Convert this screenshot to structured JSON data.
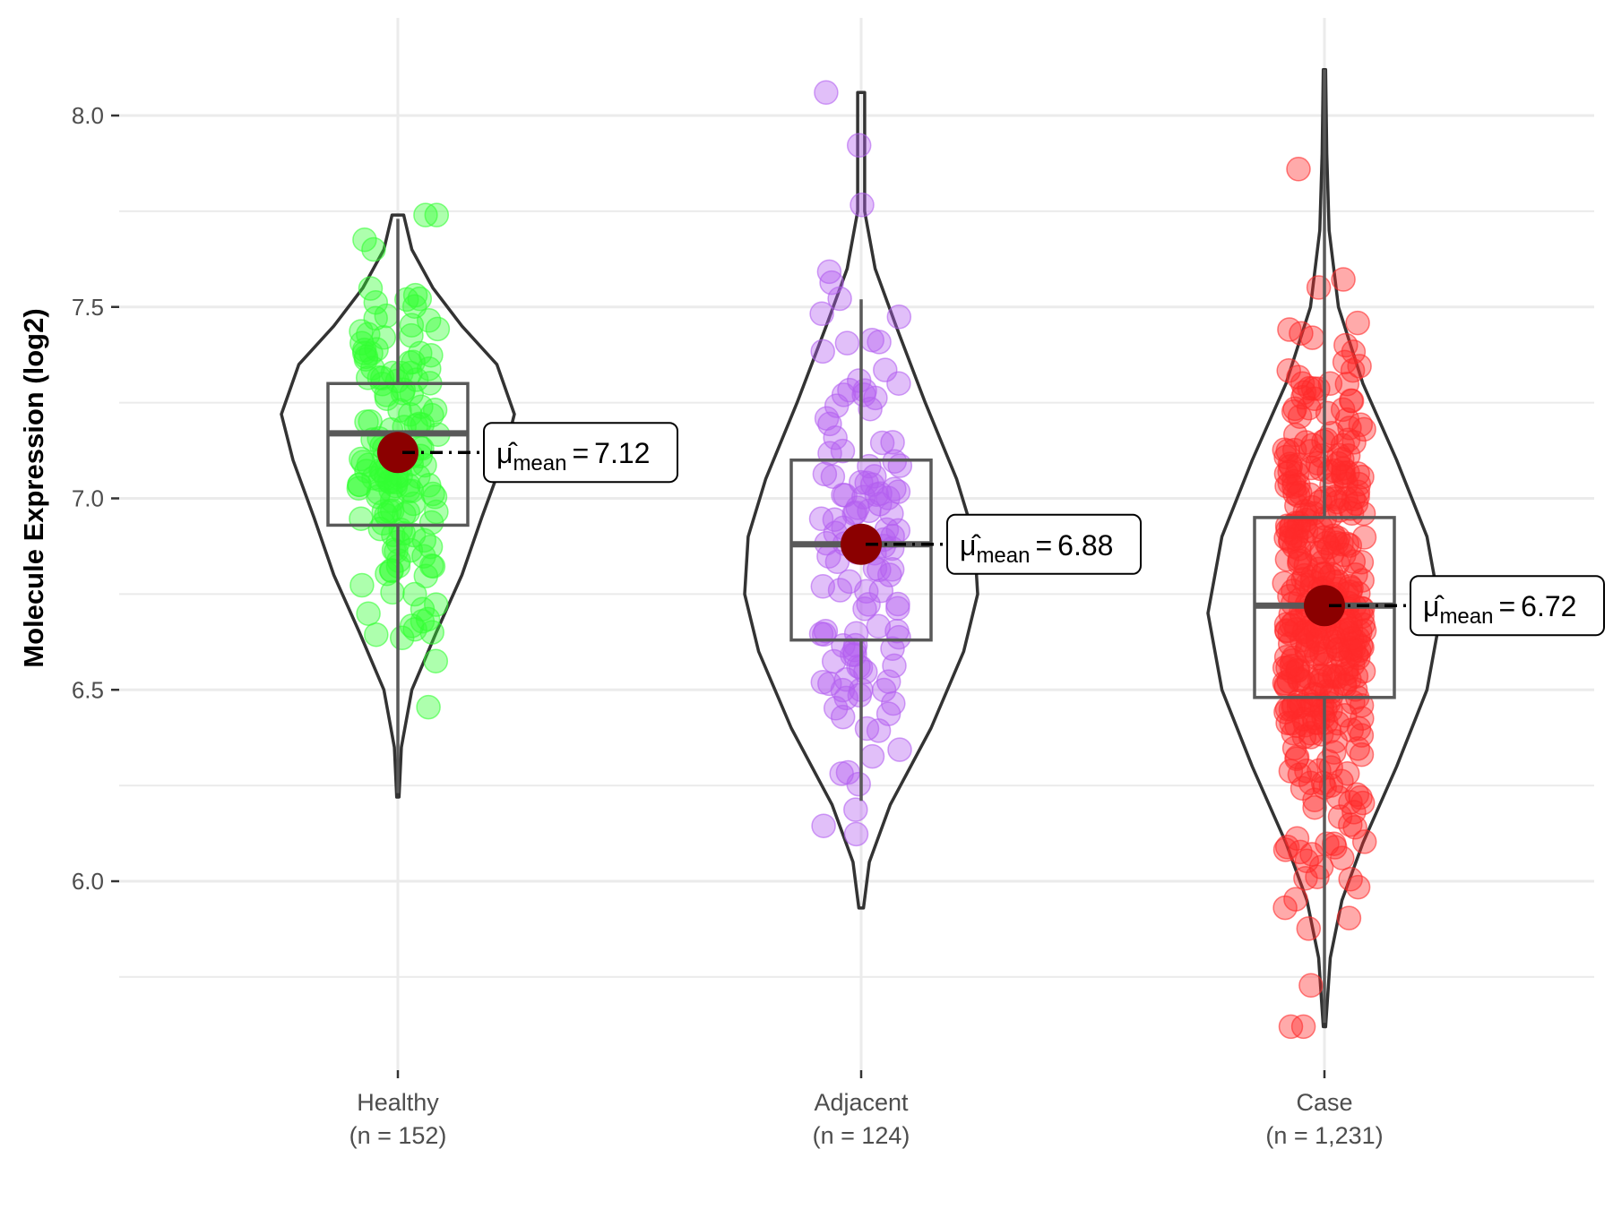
{
  "chart_data": {
    "type": "violin",
    "title": "",
    "xlabel": "",
    "ylabel": "Molecule Expression (log2)",
    "ylim": [
      5.53,
      8.22
    ],
    "yticks": [
      6.0,
      6.5,
      7.0,
      7.5,
      8.0
    ],
    "ytick_labels": [
      "6.0",
      "6.5",
      "7.0",
      "7.5",
      "8.0"
    ],
    "grid": true,
    "legend": "none",
    "groups": [
      {
        "name": "Healthy",
        "n_label": "(n = 152)",
        "n": 152,
        "color": "#33ff33",
        "min": 6.22,
        "max": 7.74,
        "whisker_low": 6.23,
        "q1": 6.93,
        "median": 7.17,
        "q3": 7.3,
        "whisker_high": 7.73,
        "mean": 7.12,
        "mean_label": "7.12",
        "density": [
          [
            6.22,
            0.01
          ],
          [
            6.35,
            0.03
          ],
          [
            6.5,
            0.12
          ],
          [
            6.65,
            0.33
          ],
          [
            6.8,
            0.55
          ],
          [
            6.95,
            0.72
          ],
          [
            7.1,
            0.9
          ],
          [
            7.22,
            1.0
          ],
          [
            7.35,
            0.85
          ],
          [
            7.45,
            0.55
          ],
          [
            7.55,
            0.3
          ],
          [
            7.65,
            0.12
          ],
          [
            7.74,
            0.05
          ]
        ]
      },
      {
        "name": "Adjacent",
        "n_label": "(n = 124)",
        "n": 124,
        "color": "#b35ff0",
        "min": 5.93,
        "max": 8.06,
        "whisker_low": 6.21,
        "q1": 6.63,
        "median": 6.88,
        "q3": 7.1,
        "whisker_high": 7.52,
        "mean": 6.88,
        "mean_label": "6.88",
        "density": [
          [
            5.93,
            0.02
          ],
          [
            6.05,
            0.07
          ],
          [
            6.2,
            0.25
          ],
          [
            6.4,
            0.6
          ],
          [
            6.6,
            0.88
          ],
          [
            6.75,
            1.0
          ],
          [
            6.9,
            0.97
          ],
          [
            7.05,
            0.82
          ],
          [
            7.25,
            0.55
          ],
          [
            7.45,
            0.3
          ],
          [
            7.6,
            0.12
          ],
          [
            7.75,
            0.03
          ],
          [
            7.9,
            0.03
          ],
          [
            8.06,
            0.03
          ]
        ]
      },
      {
        "name": "Case",
        "n_label": "(n = 1,231)",
        "n": 1231,
        "color": "#ff2a2a",
        "min": 5.62,
        "max": 8.12,
        "whisker_low": 5.63,
        "q1": 6.48,
        "median": 6.72,
        "q3": 6.95,
        "whisker_high": 8.12,
        "mean": 6.72,
        "mean_label": "6.72",
        "density": [
          [
            5.62,
            0.01
          ],
          [
            5.8,
            0.05
          ],
          [
            5.95,
            0.15
          ],
          [
            6.1,
            0.33
          ],
          [
            6.3,
            0.62
          ],
          [
            6.5,
            0.88
          ],
          [
            6.7,
            1.0
          ],
          [
            6.9,
            0.88
          ],
          [
            7.1,
            0.62
          ],
          [
            7.3,
            0.33
          ],
          [
            7.5,
            0.12
          ],
          [
            7.7,
            0.04
          ],
          [
            7.9,
            0.02
          ],
          [
            8.12,
            0.01
          ]
        ]
      }
    ],
    "annotation_symbol": "μ̂",
    "annotation_subscript": "mean",
    "annotation_equals": "=",
    "mean_point_color": "#8b0000"
  }
}
